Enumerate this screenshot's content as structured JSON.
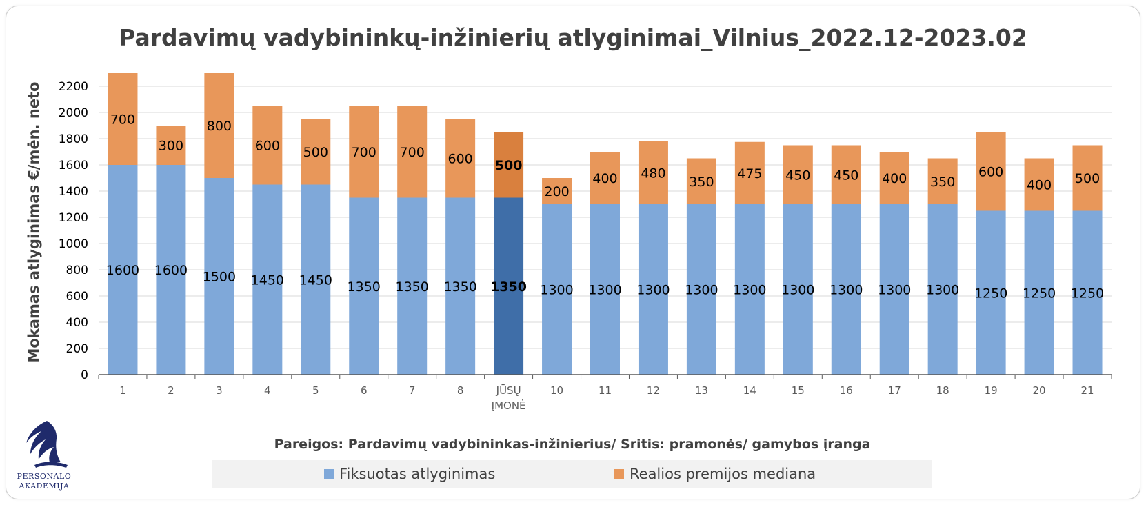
{
  "colors": {
    "fixed": "#7fa8d9",
    "bonus": "#e8975a",
    "fixed_highlight": "#3f6ea8",
    "bonus_highlight": "#d9803e",
    "grid": "#d9d9d9",
    "axis": "#595959",
    "logo": "#1f2a6b"
  },
  "logo": {
    "icon": "wing-icon",
    "line1": "PERSONALO",
    "line2": "AKADEMIJA"
  },
  "chart_data": {
    "type": "bar",
    "stacked": true,
    "title": "Pardavimų vadybininkų-inžinierių  atlyginimai_Vilnius_2022.12-2023.02",
    "xlabel": "",
    "ylabel": "Mokamas atlyginimas €/mėn. neto",
    "ylim": [
      0,
      2300
    ],
    "yticks": [
      0,
      200,
      400,
      600,
      800,
      1000,
      1200,
      1400,
      1600,
      1800,
      2000,
      2200
    ],
    "grid": true,
    "categories": [
      "1",
      "2",
      "3",
      "4",
      "5",
      "6",
      "7",
      "8",
      "JŪSŲ\nĮMONĖ",
      "10",
      "11",
      "12",
      "13",
      "14",
      "15",
      "16",
      "17",
      "18",
      "19",
      "20",
      "21"
    ],
    "highlight_index": 8,
    "series": [
      {
        "name": "Fiksuotas atlyginimas",
        "values": [
          1600,
          1600,
          1500,
          1450,
          1450,
          1350,
          1350,
          1350,
          1350,
          1300,
          1300,
          1300,
          1300,
          1300,
          1300,
          1300,
          1300,
          1300,
          1250,
          1250,
          1250
        ]
      },
      {
        "name": "Realios premijos mediana",
        "values": [
          700,
          300,
          800,
          600,
          500,
          700,
          700,
          600,
          500,
          200,
          400,
          480,
          350,
          475,
          450,
          450,
          400,
          350,
          600,
          400,
          500
        ]
      }
    ],
    "subtitle": "Pareigos: Pardavimų vadybininkas-inžinierius/ Sritis: pramonės/ gamybos įranga",
    "legend_position": "bottom"
  }
}
